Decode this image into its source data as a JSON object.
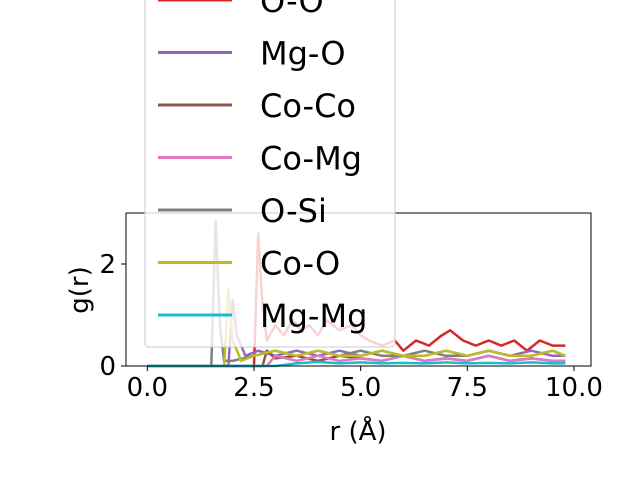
{
  "chart_data": {
    "type": "line",
    "title": "",
    "xlabel": "r (Å)",
    "ylabel": "g(r)",
    "xlim": [
      -0.5,
      10.4
    ],
    "ylim": [
      0,
      3.0
    ],
    "xticks": [
      0.0,
      2.5,
      5.0,
      7.5,
      10.0
    ],
    "xtick_labels": [
      "0.0",
      "2.5",
      "5.0",
      "7.5",
      "10.0"
    ],
    "yticks": [
      0,
      2
    ],
    "ytick_labels": [
      "0",
      "2"
    ],
    "grid": false,
    "legend_position": "upper-left, extending above the axes",
    "series": [
      {
        "name": "O-O",
        "color": "#d62728",
        "x": [
          0.0,
          2.5,
          2.6,
          2.7,
          2.8,
          3.0,
          3.2,
          3.4,
          3.6,
          3.8,
          4.0,
          4.2,
          4.5,
          4.8,
          5.0,
          5.2,
          5.5,
          5.8,
          6.0,
          6.3,
          6.6,
          6.9,
          7.1,
          7.4,
          7.7,
          8.0,
          8.3,
          8.6,
          8.9,
          9.2,
          9.5,
          9.8
        ],
        "y": [
          0,
          0,
          2.6,
          1.2,
          0.5,
          0.8,
          0.6,
          0.9,
          0.7,
          0.8,
          0.6,
          0.9,
          0.7,
          0.8,
          0.6,
          0.5,
          0.4,
          0.5,
          0.3,
          0.5,
          0.4,
          0.6,
          0.7,
          0.5,
          0.4,
          0.5,
          0.4,
          0.5,
          0.3,
          0.5,
          0.4,
          0.4
        ]
      },
      {
        "name": "Mg-O",
        "color": "#9467bd",
        "x": [
          0.0,
          1.9,
          2.0,
          2.1,
          2.3,
          2.6,
          3.0,
          3.5,
          4.0,
          4.5,
          5.0,
          5.5,
          6.0,
          6.5,
          7.0,
          7.5,
          8.0,
          8.5,
          9.0,
          9.5,
          9.8
        ],
        "y": [
          0,
          0,
          1.3,
          0.6,
          0.2,
          0.3,
          0.2,
          0.3,
          0.2,
          0.3,
          0.2,
          0.3,
          0.2,
          0.2,
          0.3,
          0.2,
          0.3,
          0.2,
          0.3,
          0.2,
          0.2
        ]
      },
      {
        "name": "Co-Co",
        "color": "#8c564b",
        "x": [
          0.0,
          2.7,
          2.8,
          3.0,
          3.5,
          4.0,
          4.5,
          5.0,
          5.5,
          6.0,
          6.5,
          7.0,
          7.5,
          8.0,
          8.5,
          9.0,
          9.5,
          9.8
        ],
        "y": [
          0,
          0,
          0.3,
          0.15,
          0.2,
          0.1,
          0.2,
          0.15,
          0.1,
          0.2,
          0.1,
          0.15,
          0.1,
          0.2,
          0.1,
          0.15,
          0.1,
          0.1
        ]
      },
      {
        "name": "Co-Mg",
        "color": "#e377c2",
        "x": [
          0.0,
          2.8,
          3.0,
          3.5,
          4.0,
          4.5,
          5.0,
          5.5,
          6.0,
          6.5,
          7.0,
          7.5,
          8.0,
          8.5,
          9.0,
          9.5,
          9.8
        ],
        "y": [
          0,
          0,
          0.2,
          0.1,
          0.2,
          0.1,
          0.15,
          0.1,
          0.2,
          0.1,
          0.15,
          0.1,
          0.2,
          0.1,
          0.15,
          0.1,
          0.1
        ]
      },
      {
        "name": "O-Si",
        "color": "#7f7f7f",
        "x": [
          0.0,
          1.5,
          1.6,
          1.7,
          1.8,
          2.0,
          2.5,
          3.0,
          3.5,
          4.0,
          4.5,
          5.0,
          5.5,
          6.0,
          6.5,
          7.0,
          7.5,
          8.0,
          8.5,
          9.0,
          9.5,
          9.8
        ],
        "y": [
          0,
          0,
          2.85,
          0.8,
          0.1,
          0.1,
          0.2,
          0.3,
          0.2,
          0.3,
          0.2,
          0.3,
          0.2,
          0.2,
          0.3,
          0.2,
          0.2,
          0.3,
          0.2,
          0.2,
          0.3,
          0.2
        ]
      },
      {
        "name": "Co-O",
        "color": "#bcbd22",
        "x": [
          0.0,
          1.8,
          1.9,
          2.0,
          2.2,
          2.5,
          3.0,
          3.5,
          4.0,
          4.5,
          5.0,
          5.5,
          6.0,
          6.5,
          7.0,
          7.5,
          8.0,
          8.5,
          9.0,
          9.5,
          9.8
        ],
        "y": [
          0,
          0,
          1.5,
          0.5,
          0.1,
          0.2,
          0.3,
          0.2,
          0.3,
          0.2,
          0.2,
          0.3,
          0.2,
          0.2,
          0.3,
          0.2,
          0.3,
          0.2,
          0.2,
          0.3,
          0.2
        ]
      },
      {
        "name": "Mg-Mg",
        "color": "#17becf",
        "x": [
          0.0,
          3.0,
          3.5,
          4.0,
          4.5,
          5.0,
          5.5,
          6.0,
          6.5,
          7.0,
          7.5,
          8.0,
          8.5,
          9.0,
          9.5,
          9.8
        ],
        "y": [
          0,
          0,
          0.05,
          0.08,
          0.05,
          0.07,
          0.05,
          0.06,
          0.05,
          0.07,
          0.05,
          0.06,
          0.05,
          0.07,
          0.05,
          0.05
        ]
      }
    ]
  }
}
